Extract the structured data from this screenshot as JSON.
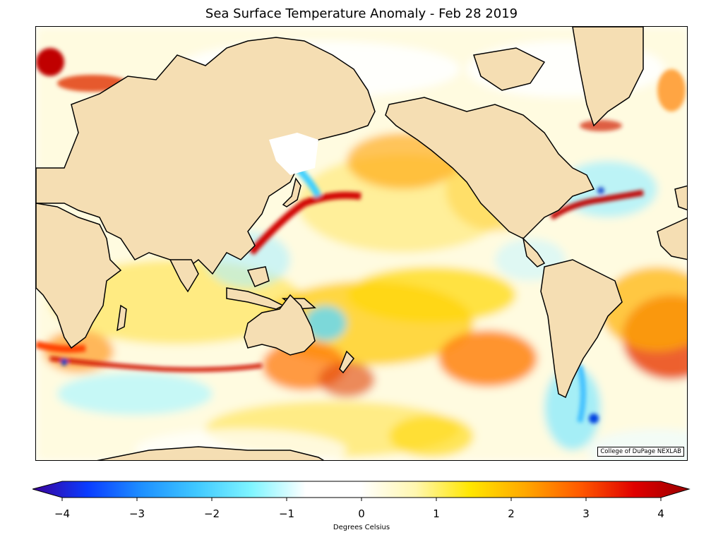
{
  "title": "Sea Surface Temperature Anomaly - Feb 28 2019",
  "credit": "College of DuPage NEXLAB",
  "colorbar": {
    "label": "Degrees Celsius",
    "min": -4,
    "max": 4,
    "ticks": [
      "−4",
      "−3",
      "−2",
      "−1",
      "0",
      "1",
      "2",
      "3",
      "4"
    ],
    "tick_values": [
      -4,
      -3,
      -2,
      -1,
      0,
      1,
      2,
      3,
      4
    ],
    "colors": [
      "#3b0099",
      "#0a3cff",
      "#1e90ff",
      "#40c8ff",
      "#7ff5ff",
      "#ffffff",
      "#ffffff",
      "#fff7b0",
      "#ffe600",
      "#ffa800",
      "#ff5a00",
      "#e00000",
      "#9a0000"
    ]
  },
  "land_color": "#f5deb3",
  "coastline_color": "#000000"
}
